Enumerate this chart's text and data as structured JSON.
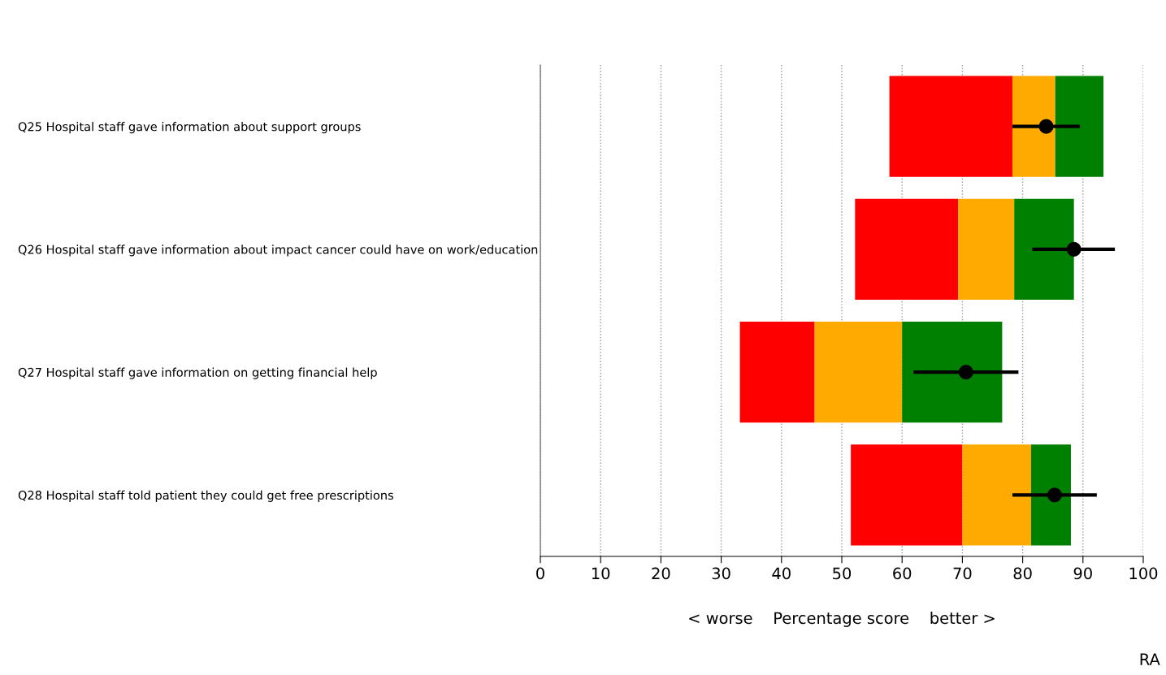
{
  "chart_data": {
    "type": "bar",
    "orientation": "horizontal",
    "xlabel": "< worse    Percentage score    better >",
    "categories": [
      "Q25 Hospital staff gave information about support groups",
      "Q26 Hospital staff gave information about impact cancer could have on work/education",
      "Q27 Hospital staff gave information on getting financial help",
      "Q28 Hospital staff told patient they could get free prescriptions"
    ],
    "series": [
      {
        "color": "#ff0000",
        "base": [
          57.9,
          52.2,
          33.1,
          51.5
        ],
        "values": [
          20.4,
          17.1,
          12.4,
          18.5
        ]
      },
      {
        "color": "#ffaa00",
        "base": [
          78.3,
          69.3,
          45.5,
          70.0
        ],
        "values": [
          7.1,
          9.3,
          14.5,
          11.4
        ]
      },
      {
        "color": "#008000",
        "base": [
          85.4,
          78.6,
          60.0,
          81.4
        ],
        "values": [
          8.0,
          9.9,
          16.6,
          6.6
        ]
      },
      {
        "type": "scatter",
        "color": "#000000",
        "marker": "circle",
        "values": [
          83.9,
          88.5,
          70.6,
          85.3
        ],
        "errors": [
          [
            78.3,
            89.5
          ],
          [
            81.6,
            95.3
          ],
          [
            61.9,
            79.3
          ],
          [
            78.3,
            92.3
          ]
        ]
      }
    ],
    "xlim": [
      0,
      100
    ],
    "xticks": [
      0,
      10,
      20,
      30,
      40,
      50,
      60,
      70,
      80,
      90,
      100
    ],
    "grid": "x",
    "annotations": [
      "RA"
    ]
  }
}
